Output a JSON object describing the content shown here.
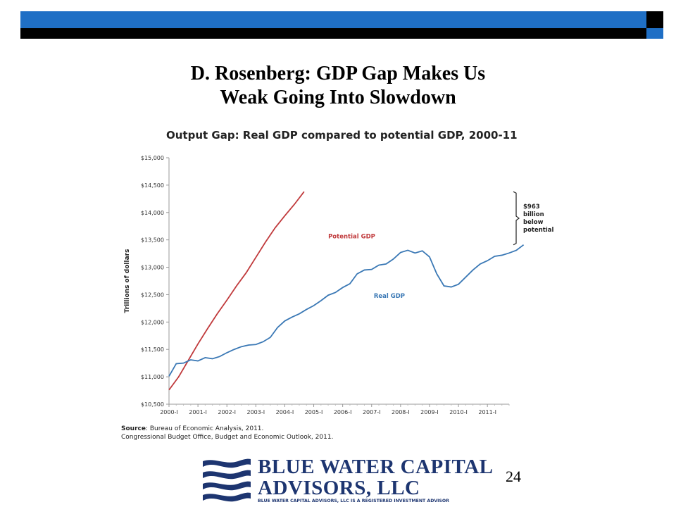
{
  "slide": {
    "title_line1": "D. Rosenberg: GDP Gap Makes Us",
    "title_line2": "Weak Going Into Slowdown",
    "page_number": "24",
    "accent_blue": "#1f6fc5"
  },
  "chart_data": {
    "type": "line",
    "title": "Output Gap: Real GDP compared to potential GDP, 2000-11",
    "ylabel": "Trillions of dollars",
    "xlabel": "",
    "ylim": [
      10500,
      15000
    ],
    "y_ticks": [
      10500,
      11000,
      11500,
      12000,
      12500,
      13000,
      13500,
      14000,
      14500,
      15000
    ],
    "y_tick_labels": [
      "$10,500",
      "$11,000",
      "$11,500",
      "$12,000",
      "$12,500",
      "$13,000",
      "$13,500",
      "$14,000",
      "$14,500",
      "$15,000"
    ],
    "x_tick_labels": [
      "2000-I",
      "2001-I",
      "2002-I",
      "2003-I",
      "2004-I",
      "2005-I",
      "2006-I",
      "2007-I",
      "2008-I",
      "2009-I",
      "2010-I",
      "2011-I"
    ],
    "x_range_quarters": [
      0,
      47
    ],
    "grid": false,
    "legend": "inline labels",
    "series": [
      {
        "name": "Potential GDP",
        "color": "#c0393b",
        "points": [
          [
            0,
            10760
          ],
          [
            4,
            11000
          ],
          [
            8,
            11300
          ],
          [
            12,
            11600
          ],
          [
            16,
            11880
          ],
          [
            20,
            12150
          ],
          [
            24,
            12400
          ],
          [
            28,
            12660
          ],
          [
            32,
            12900
          ],
          [
            36,
            13180
          ],
          [
            40,
            13460
          ],
          [
            44,
            13720
          ],
          [
            48,
            13940
          ],
          [
            52,
            14150
          ],
          [
            56,
            14380
          ]
        ],
        "x_unit": "months from 2000-I",
        "values": [
          10760,
          11000,
          11300,
          11600,
          11880,
          12150,
          12400,
          12660,
          12900,
          13180,
          13460,
          13720,
          13940,
          14150,
          14380
        ]
      },
      {
        "name": "Real GDP",
        "color": "#3a78b5",
        "values": [
          11010,
          11240,
          11250,
          11310,
          11290,
          11350,
          11330,
          11370,
          11440,
          11500,
          11550,
          11580,
          11590,
          11640,
          11720,
          11900,
          12020,
          12090,
          12150,
          12230,
          12300,
          12390,
          12490,
          12540,
          12630,
          12700,
          12880,
          12950,
          12960,
          13040,
          13060,
          13150,
          13270,
          13310,
          13260,
          13300,
          13190,
          12880,
          12660,
          12640,
          12690,
          12820,
          12950,
          13060,
          13120,
          13200,
          13220,
          13260,
          13310,
          13410
        ]
      }
    ],
    "annotations": {
      "gap_text": [
        "$963",
        "billion",
        "below",
        "potential"
      ],
      "potential_label": "Potential GDP",
      "real_label": "Real GDP"
    }
  },
  "source": {
    "label": "Source",
    "line1": ": Bureau of Economic Analysis, 2011.",
    "line2": "Congressional Budget Office, Budget and Economic Outlook, 2011."
  },
  "logo": {
    "name_line1": "BLUE WATER CAPITAL",
    "name_line2": "ADVISORS, LLC",
    "tagline": "BLUE WATER CAPITAL ADVISORS, LLC IS A REGISTERED INVESTMENT ADVISOR",
    "color": "#1d3570"
  }
}
